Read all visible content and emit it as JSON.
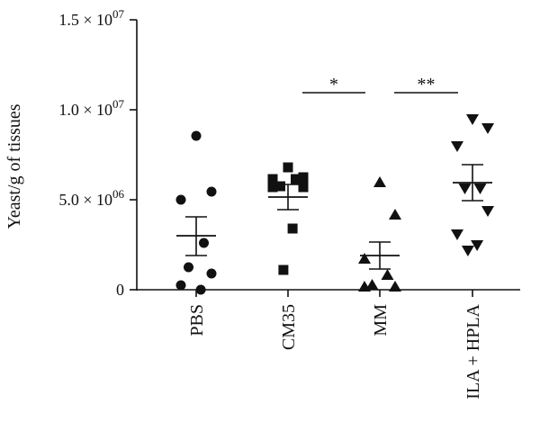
{
  "chart_data": {
    "type": "scatter",
    "ylabel": "Yeast/g of tissues",
    "ylim": [
      0,
      15000000
    ],
    "y_ticks": [
      {
        "value": 0,
        "mantissa": "0",
        "exponent": ""
      },
      {
        "value": 5000000,
        "mantissa": "5.0 × 10",
        "exponent": "06"
      },
      {
        "value": 10000000,
        "mantissa": "1.0 × 10",
        "exponent": "07"
      },
      {
        "value": 15000000,
        "mantissa": "1.5 × 10",
        "exponent": "07"
      }
    ],
    "groups": [
      {
        "label": "PBS",
        "marker": "circle",
        "values": [
          8550000,
          5450000,
          5000000,
          2600000,
          1250000,
          900000,
          250000,
          0
        ],
        "mean": 3000000,
        "sem_low": 1900000,
        "sem_high": 4050000
      },
      {
        "label": "CM35",
        "marker": "square",
        "values": [
          6800000,
          6250000,
          6150000,
          6150000,
          5750000,
          5700000,
          5700000,
          3400000,
          1100000
        ],
        "mean": 5150000,
        "sem_low": 4450000,
        "sem_high": 5850000
      },
      {
        "label": "MM",
        "marker": "triangle-up",
        "values": [
          5950000,
          4150000,
          1700000,
          800000,
          250000,
          150000,
          150000
        ],
        "mean": 1900000,
        "sem_low": 1150000,
        "sem_high": 2650000
      },
      {
        "label": "ILA + HPLA",
        "marker": "triangle-down",
        "values": [
          9500000,
          9000000,
          8000000,
          5650000,
          5650000,
          4400000,
          3100000,
          2500000,
          2200000
        ],
        "mean": 5950000,
        "sem_low": 4950000,
        "sem_high": 6950000
      }
    ],
    "significance": [
      {
        "from": 1,
        "to": 2,
        "label": "*",
        "y": 10950000
      },
      {
        "from": 2,
        "to": 3,
        "label": "**",
        "y": 10950000
      }
    ]
  }
}
